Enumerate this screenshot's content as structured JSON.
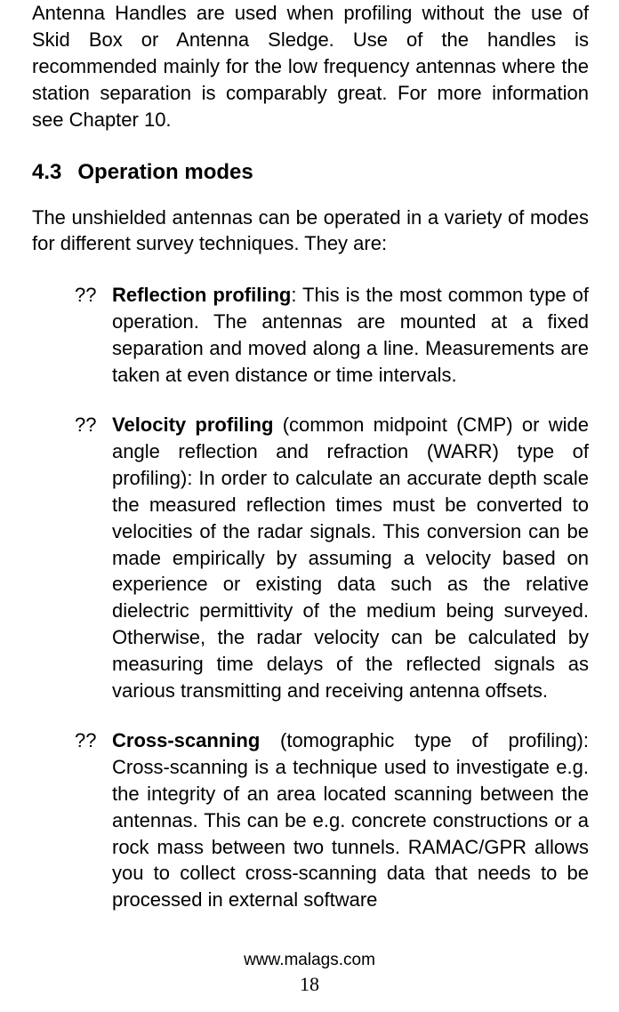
{
  "intro_para": "Antenna Handles are used when profiling without the use of Skid Box or Antenna Sledge. Use of the handles is recommended mainly for the low frequency antennas where the station separation is comparably great. For more information see Chapter 10.",
  "heading": {
    "number": "4.3",
    "title": "Operation modes"
  },
  "modes_intro": "The unshielded antennas can be operated in a variety of modes for different survey techniques. They are:",
  "bullet_marker": "??",
  "items": [
    {
      "bold": "Reflection profiling",
      "sep": ": ",
      "rest": "This is the most common type of operation. The antennas are mounted at a fixed separation and moved along a line. Measurements are taken at even distance or time intervals."
    },
    {
      "bold": "Velocity profiling",
      "sep": " ",
      "rest": "(common midpoint (CMP) or wide angle reflection and refraction (WARR) type of profiling): In order to calculate an accurate depth scale the measured reflection times must be converted to velocities of the radar signals. This conversion can be made empirically by assuming a velocity based on experience or existing data such as the relative dielectric permittivity of the medium being surveyed. Otherwise, the radar velocity can be calculated by measuring time delays of the reflected signals as various transmitting and receiving antenna offsets."
    },
    {
      "bold": "Cross-scanning",
      "sep": " ",
      "rest": "(tomographic type of profiling): Cross-scanning is a technique used to investigate e.g. the integrity of an area located scanning between the antennas. This can be e.g. concrete constructions or a rock mass between two tunnels. RAMAC/GPR allows you to collect cross-scanning data that needs to be processed in external software"
    }
  ],
  "footer": {
    "url": "www.malags.com",
    "page_number": "18"
  }
}
